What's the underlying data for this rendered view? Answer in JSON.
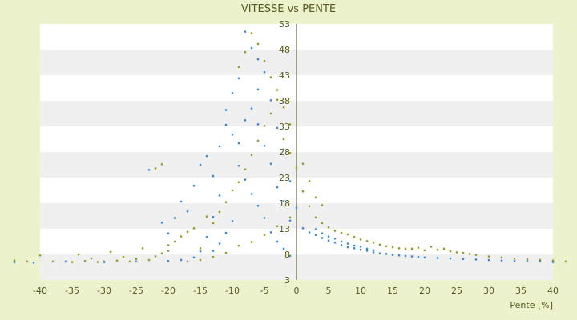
{
  "chart_data": {
    "type": "scatter",
    "title": "VITESSE vs PENTE",
    "xlabel": "Pente [%]",
    "ylabel": "",
    "xlim": [
      -40,
      40
    ],
    "ylim": [
      3,
      53
    ],
    "x_ticks": [
      -40,
      -35,
      -30,
      -25,
      -20,
      -15,
      -10,
      -5,
      0,
      5,
      10,
      15,
      20,
      25,
      30,
      35,
      40
    ],
    "y_ticks": [
      3,
      8,
      13,
      18,
      23,
      28,
      33,
      38,
      43,
      48,
      53
    ],
    "grid": "horizontal bands",
    "legend": "none",
    "colors": {
      "background": "#ecf2cc",
      "plot_band_light": "#ffffff",
      "plot_band_dark": "#f0f0f0",
      "series_blue": "#3a8ad6",
      "series_olive": "#9a9a22",
      "axis_line": "#4a4a2a",
      "text": "#5a5a1e"
    },
    "series": [
      {
        "color": "#9a9a22",
        "points": [
          [
            -44,
            6.8
          ],
          [
            -42,
            6.6
          ],
          [
            -40,
            7.8
          ],
          [
            -38,
            6.6
          ],
          [
            -35,
            6.5
          ],
          [
            -34,
            8
          ],
          [
            -33,
            6.7
          ],
          [
            -32,
            7.2
          ],
          [
            -31,
            6.5
          ],
          [
            -30,
            6.6
          ],
          [
            -29,
            8.5
          ],
          [
            -28,
            6.8
          ],
          [
            -27,
            7.5
          ],
          [
            -26,
            6.6
          ],
          [
            -25,
            7.1
          ],
          [
            -24,
            9.2
          ],
          [
            -23,
            6.9
          ],
          [
            -22,
            7.6
          ],
          [
            -21,
            8.2
          ],
          [
            -20,
            9.8
          ],
          [
            -22,
            24.8
          ],
          [
            -21,
            25.6
          ],
          [
            -20,
            8.7
          ],
          [
            -19,
            10.5
          ],
          [
            -18,
            11.5
          ],
          [
            -17,
            12.4
          ],
          [
            -16,
            13.1
          ],
          [
            -15,
            9.2
          ],
          [
            -14,
            15.4
          ],
          [
            -13,
            14.1
          ],
          [
            -12,
            16.3
          ],
          [
            -11,
            18.2
          ],
          [
            -10,
            20.5
          ],
          [
            -9,
            22.1
          ],
          [
            -8,
            24.6
          ],
          [
            -7,
            27.4
          ],
          [
            -6,
            30.2
          ],
          [
            -5,
            33.1
          ],
          [
            -4,
            35.5
          ],
          [
            -3,
            38.2
          ],
          [
            -9,
            44.6
          ],
          [
            -8,
            47.5
          ],
          [
            -7,
            51.2
          ],
          [
            -6,
            49.1
          ],
          [
            -5,
            45.8
          ],
          [
            -4,
            42.6
          ],
          [
            -3,
            40.1
          ],
          [
            -2,
            36.7
          ],
          [
            -1,
            33.4
          ],
          [
            -2,
            30.5
          ],
          [
            -1,
            27.8
          ],
          [
            0,
            24.9
          ],
          [
            1,
            20.3
          ],
          [
            2,
            17.4
          ],
          [
            3,
            15.2
          ],
          [
            4,
            14.1
          ],
          [
            5,
            13.3
          ],
          [
            6,
            12.6
          ],
          [
            7,
            12.2
          ],
          [
            8,
            11.9
          ],
          [
            9,
            11.4
          ],
          [
            10,
            10.9
          ],
          [
            11,
            10.6
          ],
          [
            12,
            10.3
          ],
          [
            13,
            9.9
          ],
          [
            14,
            9.6
          ],
          [
            15,
            9.4
          ],
          [
            16,
            9.2
          ],
          [
            17,
            9.1
          ],
          [
            18,
            9.1
          ],
          [
            19,
            9.3
          ],
          [
            20,
            8.8
          ],
          [
            21,
            9.5
          ],
          [
            22,
            8.9
          ],
          [
            23,
            9.1
          ],
          [
            24,
            8.6
          ],
          [
            25,
            8.4
          ],
          [
            26,
            8.3
          ],
          [
            27,
            8.1
          ],
          [
            28,
            7.9
          ],
          [
            30,
            7.6
          ],
          [
            32,
            7.4
          ],
          [
            34,
            7.2
          ],
          [
            36,
            7.1
          ],
          [
            38,
            6.9
          ],
          [
            40,
            6.8
          ],
          [
            42,
            6.6
          ],
          [
            1,
            25.7
          ],
          [
            2,
            22.3
          ],
          [
            3,
            19.1
          ],
          [
            4,
            17.6
          ],
          [
            -1,
            15.2
          ],
          [
            -3,
            13.5
          ],
          [
            -5,
            11.8
          ],
          [
            -7,
            10.4
          ],
          [
            -9,
            9.7
          ],
          [
            -11,
            8.3
          ],
          [
            -13,
            7.5
          ],
          [
            -15,
            6.9
          ],
          [
            -17,
            6.6
          ]
        ]
      },
      {
        "color": "#3a8ad6",
        "points": [
          [
            -44,
            6.5
          ],
          [
            -41,
            6.4
          ],
          [
            -36,
            6.6
          ],
          [
            -30,
            6.5
          ],
          [
            -25,
            6.6
          ],
          [
            -23,
            24.5
          ],
          [
            -21,
            14.2
          ],
          [
            -20,
            12.1
          ],
          [
            -19,
            15.1
          ],
          [
            -18,
            18.3
          ],
          [
            -17,
            16.4
          ],
          [
            -16,
            21.4
          ],
          [
            -15,
            25.5
          ],
          [
            -14,
            27.2
          ],
          [
            -13,
            23.3
          ],
          [
            -12,
            29.1
          ],
          [
            -11,
            33.3
          ],
          [
            -10,
            31.4
          ],
          [
            -9,
            29.7
          ],
          [
            -8,
            34.2
          ],
          [
            -7,
            36.5
          ],
          [
            -6,
            40.2
          ],
          [
            -5,
            43.6
          ],
          [
            -4,
            38.1
          ],
          [
            -3,
            32.7
          ],
          [
            -2,
            28.5
          ],
          [
            -1,
            22.3
          ],
          [
            0,
            17.1
          ],
          [
            1,
            13.1
          ],
          [
            2,
            12.3
          ],
          [
            3,
            11.8
          ],
          [
            4,
            11.2
          ],
          [
            5,
            10.7
          ],
          [
            6,
            10.3
          ],
          [
            7,
            9.8
          ],
          [
            8,
            9.4
          ],
          [
            9,
            9.2
          ],
          [
            10,
            8.9
          ],
          [
            11,
            8.7
          ],
          [
            12,
            8.4
          ],
          [
            13,
            8.2
          ],
          [
            14,
            8.1
          ],
          [
            15,
            7.9
          ],
          [
            16,
            7.8
          ],
          [
            17,
            7.7
          ],
          [
            18,
            7.6
          ],
          [
            19,
            7.5
          ],
          [
            20,
            7.4
          ],
          [
            22,
            7.3
          ],
          [
            24,
            7.2
          ],
          [
            26,
            7.1
          ],
          [
            28,
            7
          ],
          [
            30,
            6.9
          ],
          [
            32,
            6.8
          ],
          [
            34,
            6.7
          ],
          [
            36,
            6.7
          ],
          [
            38,
            6.6
          ],
          [
            40,
            6.5
          ],
          [
            -8,
            51.5
          ],
          [
            -7,
            48.3
          ],
          [
            -6,
            46.1
          ],
          [
            -9,
            42.4
          ],
          [
            -10,
            39.5
          ],
          [
            -11,
            36.2
          ],
          [
            -12,
            19.5
          ],
          [
            -13,
            15.3
          ],
          [
            -14,
            11.4
          ],
          [
            -15,
            8.6
          ],
          [
            -16,
            7.4
          ],
          [
            -18,
            6.9
          ],
          [
            -20,
            6.7
          ],
          [
            -9,
            25.3
          ],
          [
            -8,
            22.6
          ],
          [
            -7,
            19.8
          ],
          [
            -6,
            17.5
          ],
          [
            -5,
            15.1
          ],
          [
            -4,
            12.3
          ],
          [
            -3,
            10.5
          ],
          [
            -2,
            9.1
          ],
          [
            -1,
            7.7
          ],
          [
            -10,
            14.5
          ],
          [
            -11,
            12.2
          ],
          [
            -12,
            10.1
          ],
          [
            -13,
            8.7
          ],
          [
            -6,
            33.4
          ],
          [
            -5,
            29.2
          ],
          [
            -4,
            25.7
          ],
          [
            -3,
            21.1
          ],
          [
            -2,
            18.4
          ],
          [
            -1,
            14.6
          ],
          [
            3,
            12.9
          ],
          [
            4,
            12.1
          ],
          [
            5,
            11.5
          ],
          [
            6,
            11.1
          ],
          [
            7,
            10.5
          ],
          [
            8,
            10.1
          ],
          [
            9,
            9.7
          ],
          [
            10,
            9.5
          ],
          [
            11,
            9.1
          ],
          [
            12,
            8.8
          ]
        ]
      }
    ]
  }
}
